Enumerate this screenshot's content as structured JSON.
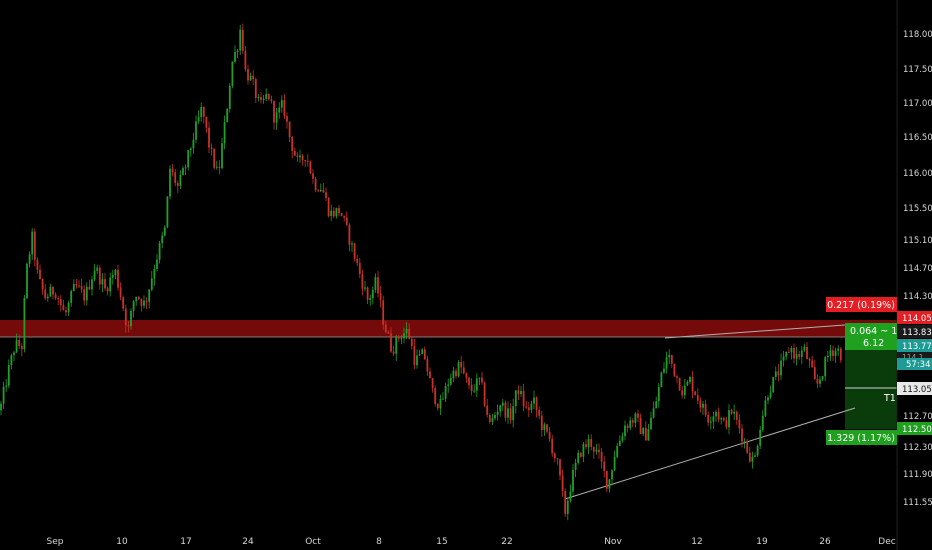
{
  "chart_data": {
    "type": "candlestick",
    "y_axis": {
      "range": [
        111.5,
        118.25
      ],
      "tick_labels": [
        "118.000",
        "117.500",
        "117.000",
        "116.500",
        "116.000",
        "115.500",
        "115.100",
        "114.700",
        "114.300",
        "113.837",
        "112.700",
        "112.300",
        "111.900",
        "111.550"
      ]
    },
    "x_axis": {
      "tick_labels": [
        "Sep",
        "10",
        "17",
        "24",
        "Oct",
        "8",
        "15",
        "22",
        "Nov",
        "12",
        "19",
        "26",
        "Dec"
      ]
    },
    "price_path": [
      [
        0,
        112.95
      ],
      [
        8,
        113.45
      ],
      [
        15,
        113.82
      ],
      [
        22,
        113.8
      ],
      [
        26,
        114.75
      ],
      [
        32,
        115.25
      ],
      [
        38,
        114.7
      ],
      [
        45,
        114.45
      ],
      [
        55,
        114.55
      ],
      [
        65,
        114.2
      ],
      [
        75,
        114.6
      ],
      [
        85,
        114.45
      ],
      [
        95,
        114.85
      ],
      [
        105,
        114.55
      ],
      [
        115,
        114.8
      ],
      [
        122,
        114.4
      ],
      [
        128,
        114.0
      ],
      [
        135,
        114.5
      ],
      [
        145,
        114.35
      ],
      [
        155,
        114.9
      ],
      [
        165,
        115.35
      ],
      [
        170,
        116.15
      ],
      [
        178,
        115.9
      ],
      [
        186,
        116.2
      ],
      [
        194,
        116.6
      ],
      [
        202,
        116.95
      ],
      [
        210,
        116.4
      ],
      [
        218,
        116.05
      ],
      [
        226,
        116.85
      ],
      [
        232,
        117.55
      ],
      [
        237,
        117.75
      ],
      [
        241,
        118.05
      ],
      [
        245,
        117.45
      ],
      [
        252,
        117.3
      ],
      [
        260,
        116.95
      ],
      [
        268,
        117.15
      ],
      [
        275,
        116.8
      ],
      [
        283,
        117.0
      ],
      [
        290,
        116.55
      ],
      [
        298,
        116.2
      ],
      [
        306,
        116.35
      ],
      [
        314,
        115.95
      ],
      [
        322,
        115.9
      ],
      [
        330,
        115.55
      ],
      [
        340,
        115.6
      ],
      [
        350,
        115.2
      ],
      [
        360,
        114.75
      ],
      [
        368,
        114.4
      ],
      [
        376,
        114.65
      ],
      [
        384,
        114.1
      ],
      [
        392,
        113.75
      ],
      [
        400,
        113.95
      ],
      [
        408,
        114.0
      ],
      [
        415,
        113.6
      ],
      [
        424,
        113.7
      ],
      [
        432,
        113.2
      ],
      [
        440,
        113.0
      ],
      [
        450,
        113.4
      ],
      [
        460,
        113.55
      ],
      [
        470,
        113.2
      ],
      [
        480,
        113.35
      ],
      [
        490,
        112.75
      ],
      [
        500,
        113.05
      ],
      [
        510,
        112.85
      ],
      [
        518,
        113.25
      ],
      [
        526,
        112.95
      ],
      [
        534,
        113.05
      ],
      [
        542,
        112.75
      ],
      [
        550,
        112.55
      ],
      [
        558,
        112.2
      ],
      [
        565,
        111.6
      ],
      [
        572,
        112.05
      ],
      [
        580,
        112.4
      ],
      [
        590,
        112.55
      ],
      [
        600,
        112.3
      ],
      [
        608,
        111.95
      ],
      [
        615,
        112.4
      ],
      [
        625,
        112.75
      ],
      [
        635,
        112.85
      ],
      [
        645,
        112.6
      ],
      [
        655,
        113.0
      ],
      [
        662,
        113.45
      ],
      [
        668,
        113.7
      ],
      [
        675,
        113.45
      ],
      [
        683,
        113.2
      ],
      [
        690,
        113.35
      ],
      [
        700,
        113.05
      ],
      [
        708,
        112.85
      ],
      [
        716,
        112.95
      ],
      [
        724,
        112.75
      ],
      [
        732,
        112.95
      ],
      [
        740,
        112.7
      ],
      [
        748,
        112.4
      ],
      [
        754,
        112.25
      ],
      [
        760,
        112.75
      ],
      [
        768,
        113.2
      ],
      [
        776,
        113.4
      ],
      [
        784,
        113.6
      ],
      [
        790,
        113.8
      ],
      [
        796,
        113.65
      ],
      [
        804,
        113.75
      ],
      [
        810,
        113.55
      ],
      [
        816,
        113.25
      ],
      [
        822,
        113.45
      ],
      [
        830,
        113.75
      ],
      [
        838,
        113.75
      ],
      [
        843,
        113.65
      ]
    ],
    "resistance_zone": [
      113.85,
      114.06
    ],
    "horizontal_line_1": 113.85,
    "horizontal_line_2": 113.058,
    "annotations": {
      "stop_box": "0.217 (0.19%)",
      "stop_level": "114.054",
      "current_box_line1": "0.064 ~ 1",
      "current_box_line2": "6.12",
      "current_price": "113.773",
      "current_time": "57:34",
      "last_price": "113.837",
      "target_level": "113.058",
      "target_tag": "T1",
      "profit_level": "112.508",
      "profit_box": "1.329 (1.17%)",
      "cut_label": "114.1"
    },
    "colors": {
      "up": "#20a02a",
      "down": "#c8322a",
      "zone": "#8a0c0c",
      "red_box": "#e41e23",
      "green_box": "#1fa11f",
      "teal_box": "#1e9b94",
      "profit_fill": "#0a3b0a"
    }
  }
}
